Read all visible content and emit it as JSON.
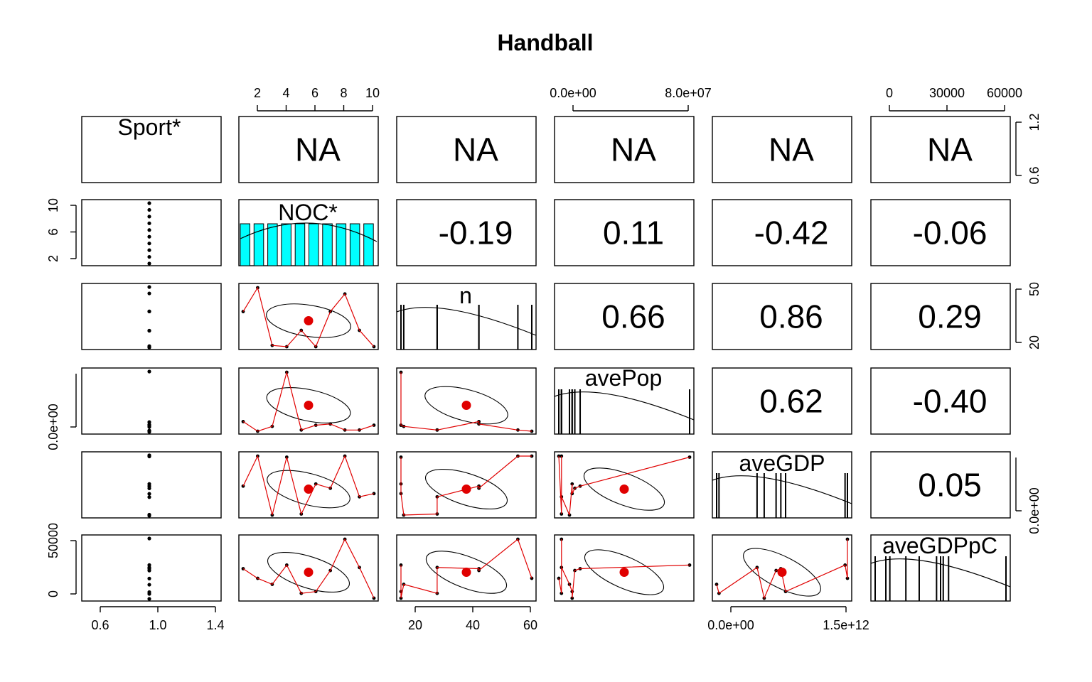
{
  "chart_data": {
    "type": "scatter-matrix",
    "title": "Handball",
    "variables": [
      "Sport*",
      "NOC*",
      "n",
      "avePop",
      "aveGDP",
      "aveGDPpC"
    ],
    "correlations": [
      {
        "row": 0,
        "col": 1,
        "text": "NA"
      },
      {
        "row": 0,
        "col": 2,
        "text": "NA"
      },
      {
        "row": 0,
        "col": 3,
        "text": "NA"
      },
      {
        "row": 0,
        "col": 4,
        "text": "NA"
      },
      {
        "row": 0,
        "col": 5,
        "text": "NA"
      },
      {
        "row": 1,
        "col": 2,
        "text": "-0.19"
      },
      {
        "row": 1,
        "col": 3,
        "text": "0.11"
      },
      {
        "row": 1,
        "col": 4,
        "text": "-0.42"
      },
      {
        "row": 1,
        "col": 5,
        "text": "-0.06"
      },
      {
        "row": 2,
        "col": 3,
        "text": "0.66"
      },
      {
        "row": 2,
        "col": 4,
        "text": "0.86"
      },
      {
        "row": 2,
        "col": 5,
        "text": "0.29"
      },
      {
        "row": 3,
        "col": 4,
        "text": "0.62"
      },
      {
        "row": 3,
        "col": 5,
        "text": "-0.40"
      },
      {
        "row": 4,
        "col": 5,
        "text": "0.05"
      }
    ],
    "axes": [
      {
        "id": "top-noc",
        "side": "top",
        "col": 1,
        "labels": [
          "2",
          "4",
          "6",
          "8",
          "10"
        ],
        "minor": 10
      },
      {
        "id": "top-avepop",
        "side": "top",
        "col": 3,
        "labels": [
          "0.0e+00",
          "8.0e+07"
        ]
      },
      {
        "id": "top-avegdppc",
        "side": "top",
        "col": 5,
        "labels": [
          "0",
          "30000",
          "60000"
        ]
      },
      {
        "id": "right-sport",
        "side": "right",
        "row": 0,
        "labels": [
          "0.6",
          "1.2"
        ]
      },
      {
        "id": "right-n",
        "side": "right",
        "row": 2,
        "labels": [
          "20",
          "50"
        ]
      },
      {
        "id": "right-avegdp",
        "side": "right",
        "row": 4,
        "labels": [
          "0.0e+00"
        ]
      },
      {
        "id": "left-noc",
        "side": "left",
        "row": 1,
        "labels": [
          "2",
          "6",
          "10"
        ]
      },
      {
        "id": "left-avepop",
        "side": "left",
        "row": 3,
        "labels": [
          "0.0e+00"
        ]
      },
      {
        "id": "left-avegdppc",
        "side": "left",
        "row": 5,
        "labels": [
          "0",
          "50000"
        ]
      },
      {
        "id": "bottom-sport",
        "side": "bottom",
        "col": 0,
        "labels": [
          "0.6",
          "1.0",
          "1.4"
        ]
      },
      {
        "id": "bottom-n",
        "side": "bottom",
        "col": 2,
        "labels": [
          "20",
          "40",
          "60"
        ]
      },
      {
        "id": "bottom-avegdp",
        "side": "bottom",
        "col": 4,
        "labels": [
          "0.0e+00",
          "1.5e+12"
        ]
      }
    ],
    "series": {
      "NOC": [
        1,
        2,
        3,
        4,
        5,
        6,
        7,
        8,
        9,
        10
      ],
      "n": [
        44,
        63,
        17,
        16,
        29,
        16,
        44,
        58,
        29,
        16
      ],
      "avePop": [
        0.8,
        0.0,
        0.4,
        4.9,
        0.1,
        0.5,
        0.6,
        0.1,
        0.1,
        0.5
      ],
      "aveGDP": [
        2.9,
        5.7,
        0.2,
        5.6,
        0.3,
        3.1,
        2.7,
        5.7,
        1.9,
        2.2
      ],
      "aveGDPpC": [
        5.1,
        3.5,
        2.5,
        5.7,
        1.0,
        1.3,
        4.8,
        10.0,
        5.3,
        0.2
      ]
    },
    "histograms": {
      "NOC": {
        "bars": [
          1,
          1,
          1,
          1,
          1,
          1,
          1,
          1,
          1,
          1
        ]
      }
    }
  }
}
